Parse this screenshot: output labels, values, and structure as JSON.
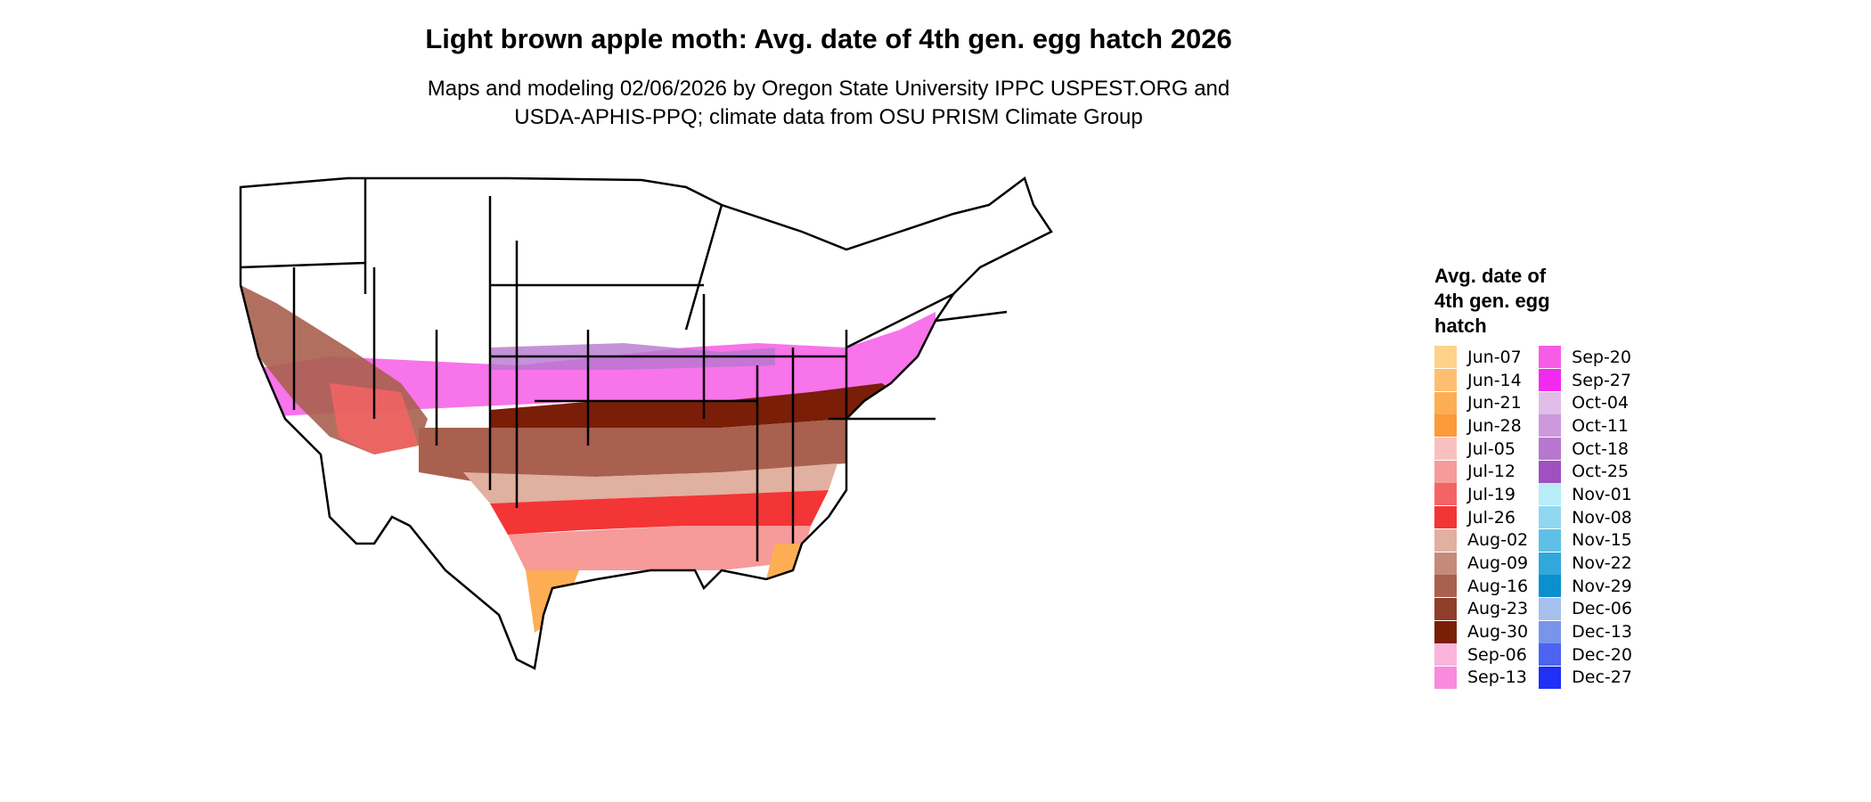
{
  "title": "Light brown apple moth: Avg. date of 4th gen. egg hatch 2026",
  "subtitle": [
    "Maps and modeling 02/06/2026 by Oregon State University IPPC USPEST.ORG and",
    "USDA-APHIS-PPQ; climate data from OSU PRISM Climate Group"
  ],
  "legend": {
    "title_lines": [
      "Avg. date of",
      "4th gen. egg",
      "hatch"
    ],
    "columns": [
      [
        {
          "label": "Jun-07",
          "color": "#fdd28a"
        },
        {
          "label": "Jun-14",
          "color": "#fdbf6f"
        },
        {
          "label": "Jun-21",
          "color": "#fdae55"
        },
        {
          "label": "Jun-28",
          "color": "#fd9a3a"
        },
        {
          "label": "Jul-05",
          "color": "#f9c0c0"
        },
        {
          "label": "Jul-12",
          "color": "#f79a9a"
        },
        {
          "label": "Jul-19",
          "color": "#f46464"
        },
        {
          "label": "Jul-26",
          "color": "#f33535"
        },
        {
          "label": "Aug-02",
          "color": "#e0b0a0"
        },
        {
          "label": "Aug-09",
          "color": "#c58a7a"
        },
        {
          "label": "Aug-16",
          "color": "#a9604e"
        },
        {
          "label": "Aug-23",
          "color": "#8f3e2a"
        },
        {
          "label": "Aug-30",
          "color": "#7a1e08"
        },
        {
          "label": "Sep-06",
          "color": "#fbb4dc"
        },
        {
          "label": "Sep-13",
          "color": "#f98bdc"
        }
      ],
      [
        {
          "label": "Sep-20",
          "color": "#f65ce6"
        },
        {
          "label": "Sep-27",
          "color": "#f22af0"
        },
        {
          "label": "Oct-04",
          "color": "#e0bde6"
        },
        {
          "label": "Oct-11",
          "color": "#cc99dc"
        },
        {
          "label": "Oct-18",
          "color": "#b777cf"
        },
        {
          "label": "Oct-25",
          "color": "#a050c0"
        },
        {
          "label": "Nov-01",
          "color": "#b8ecf8"
        },
        {
          "label": "Nov-08",
          "color": "#8fd8f0"
        },
        {
          "label": "Nov-15",
          "color": "#5ec0e6"
        },
        {
          "label": "Nov-22",
          "color": "#30a8dc"
        },
        {
          "label": "Nov-29",
          "color": "#0a90cc"
        },
        {
          "label": "Dec-06",
          "color": "#a5c0ec"
        },
        {
          "label": "Dec-13",
          "color": "#7a94ec"
        },
        {
          "label": "Dec-20",
          "color": "#4c64f0"
        },
        {
          "label": "Dec-27",
          "color": "#2030f6"
        }
      ]
    ]
  },
  "map_colors": {
    "border": "#000000",
    "background": "#ffffff",
    "no_hatch": "#ffffff"
  }
}
